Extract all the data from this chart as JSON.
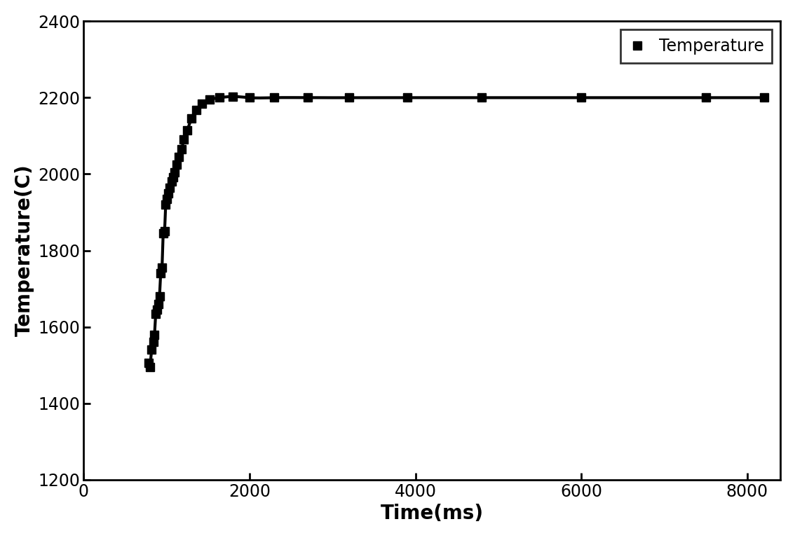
{
  "xlabel": "Time(ms)",
  "ylabel": "Temperature(C)",
  "legend_label": "Temperature",
  "xlim": [
    0,
    8400
  ],
  "ylim": [
    1200,
    2400
  ],
  "xticks": [
    0,
    2000,
    4000,
    6000,
    8000
  ],
  "yticks": [
    1200,
    1400,
    1600,
    1800,
    2000,
    2200,
    2400
  ],
  "marker": "s",
  "marker_color": "black",
  "marker_size": 8,
  "line_color": "black",
  "line_width": 3.0,
  "background_color": "#ffffff",
  "xlabel_fontsize": 20,
  "ylabel_fontsize": 20,
  "tick_fontsize": 17,
  "legend_fontsize": 17,
  "legend_loc": "upper right",
  "time_data": [
    780,
    800,
    820,
    840,
    855,
    870,
    885,
    900,
    915,
    930,
    945,
    960,
    975,
    990,
    1005,
    1020,
    1040,
    1060,
    1080,
    1100,
    1125,
    1150,
    1180,
    1210,
    1250,
    1300,
    1360,
    1430,
    1520,
    1640,
    1800,
    2000,
    2300,
    2700,
    3200,
    3900,
    4800,
    6000,
    7500,
    8200
  ],
  "temp_data": [
    1505,
    1495,
    1540,
    1560,
    1580,
    1635,
    1645,
    1660,
    1680,
    1740,
    1755,
    1845,
    1850,
    1920,
    1935,
    1950,
    1965,
    1980,
    1992,
    2005,
    2025,
    2045,
    2065,
    2090,
    2115,
    2145,
    2168,
    2185,
    2195,
    2200,
    2203,
    2200,
    2200,
    2200,
    2200,
    2200,
    2200,
    2200,
    2200,
    2200
  ]
}
